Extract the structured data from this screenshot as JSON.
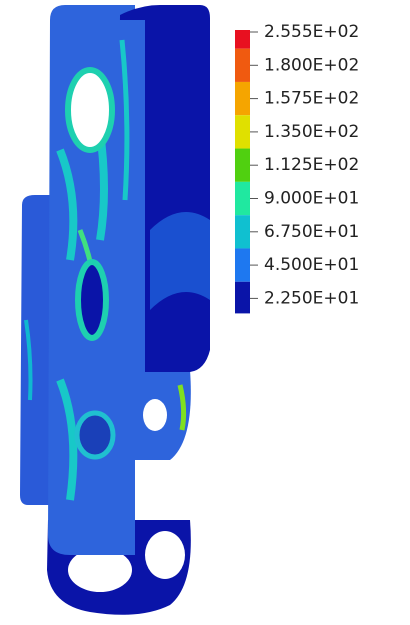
{
  "legend": {
    "items": [
      {
        "label": "2.555E+02",
        "color": "#e81020"
      },
      {
        "label": "1.800E+02",
        "color": "#f05a10"
      },
      {
        "label": "1.575E+02",
        "color": "#f5a500"
      },
      {
        "label": "1.350E+02",
        "color": "#e0e000"
      },
      {
        "label": "1.125E+02",
        "color": "#50d010"
      },
      {
        "label": "9.000E+01",
        "color": "#20e8a0"
      },
      {
        "label": "6.750E+01",
        "color": "#10c0d0"
      },
      {
        "label": "4.500E+01",
        "color": "#1e78f0"
      },
      {
        "label": "2.250E+01",
        "color": "#0a14a8"
      }
    ]
  }
}
